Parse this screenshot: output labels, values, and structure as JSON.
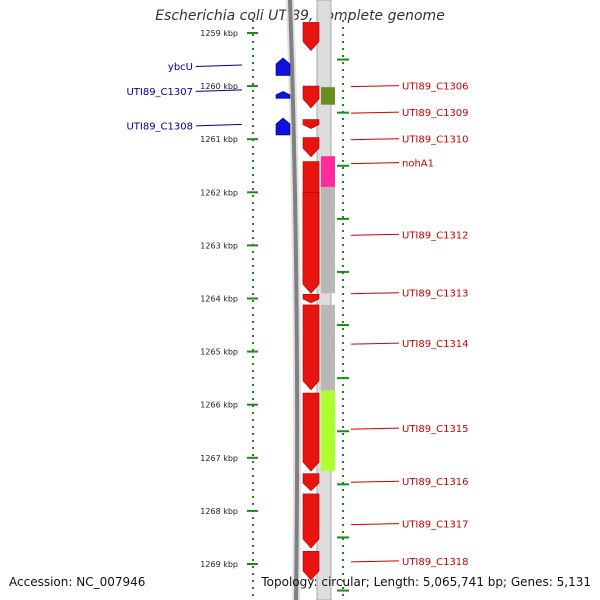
{
  "title": "Escherichia coli UTI89, complete genome",
  "accession": "Accession: NC_007946",
  "stats": "Topology: circular; Length: 5,065,741 bp; Genes: 5,131",
  "colors": {
    "forward_gene": "#e8140f",
    "reverse_gene": "#1010e0",
    "left_label": "#00008b",
    "right_label": "#cc0000",
    "tick": "#1a8a1a",
    "backbone": "#808080",
    "feature_olive": "#6b8e23",
    "feature_pink": "#ff2d9b",
    "feature_lime": "#adff2f",
    "feature_grey": "#b8b8b8"
  },
  "axis": {
    "unit": "kbp",
    "ticks": [
      "1259 kbp",
      "1260 kbp",
      "1261 kbp",
      "1262 kbp",
      "1263 kbp",
      "1264 kbp",
      "1265 kbp",
      "1266 kbp",
      "1267 kbp",
      "1268 kbp",
      "1269 kbp"
    ]
  },
  "reverse_genes": [
    {
      "name": "ybcU",
      "start": 1259.47,
      "end": 1259.8
    },
    {
      "name": "UTI89_C1307",
      "start": 1260.1,
      "end": 1260.23
    },
    {
      "name": "UTI89_C1308",
      "start": 1260.6,
      "end": 1260.92
    }
  ],
  "forward_genes": [
    {
      "name": "",
      "start": 1258.8,
      "end": 1259.33
    },
    {
      "name": "UTI89_C1306",
      "start": 1260.0,
      "end": 1260.41
    },
    {
      "name": "UTI89_C1309",
      "start": 1260.63,
      "end": 1260.8
    },
    {
      "name": "UTI89_C1310",
      "start": 1260.97,
      "end": 1261.33
    },
    {
      "name": "nohA1",
      "start": 1261.42,
      "end": 1263.9
    },
    {
      "name": "UTI89_C1312",
      "start": 1262.0,
      "end": 1263.9
    },
    {
      "name": "UTI89_C1313",
      "start": 1263.92,
      "end": 1264.08
    },
    {
      "name": "UTI89_C1314",
      "start": 1264.12,
      "end": 1265.72
    },
    {
      "name": "UTI89_C1315",
      "start": 1265.78,
      "end": 1267.25
    },
    {
      "name": "UTI89_C1316",
      "start": 1267.3,
      "end": 1267.62
    },
    {
      "name": "UTI89_C1317",
      "start": 1267.68,
      "end": 1268.7
    },
    {
      "name": "UTI89_C1318",
      "start": 1268.76,
      "end": 1269.3
    }
  ],
  "features": [
    {
      "color": "olive",
      "start": 1260.02,
      "end": 1260.35
    },
    {
      "color": "pink",
      "start": 1261.32,
      "end": 1261.9
    },
    {
      "color": "grey",
      "start": 1261.9,
      "end": 1263.9
    },
    {
      "color": "grey",
      "start": 1264.12,
      "end": 1265.73
    },
    {
      "color": "lime",
      "start": 1265.73,
      "end": 1267.25
    }
  ],
  "left_labels": [
    {
      "text": "ybcU",
      "pos": 1259.63
    },
    {
      "text": "UTI89_C1307",
      "pos": 1260.1
    },
    {
      "text": "UTI89_C1308",
      "pos": 1260.75
    }
  ],
  "right_labels": [
    {
      "text": "UTI89_C1306",
      "pos": 1260.0
    },
    {
      "text": "UTI89_C1309",
      "pos": 1260.5
    },
    {
      "text": "UTI89_C1310",
      "pos": 1261.0
    },
    {
      "text": "nohA1",
      "pos": 1261.45
    },
    {
      "text": "UTI89_C1312",
      "pos": 1262.8
    },
    {
      "text": "UTI89_C1313",
      "pos": 1263.9
    },
    {
      "text": "UTI89_C1314",
      "pos": 1264.85
    },
    {
      "text": "UTI89_C1315",
      "pos": 1266.45
    },
    {
      "text": "UTI89_C1316",
      "pos": 1267.45
    },
    {
      "text": "UTI89_C1317",
      "pos": 1268.25
    },
    {
      "text": "UTI89_C1318",
      "pos": 1268.95
    }
  ]
}
